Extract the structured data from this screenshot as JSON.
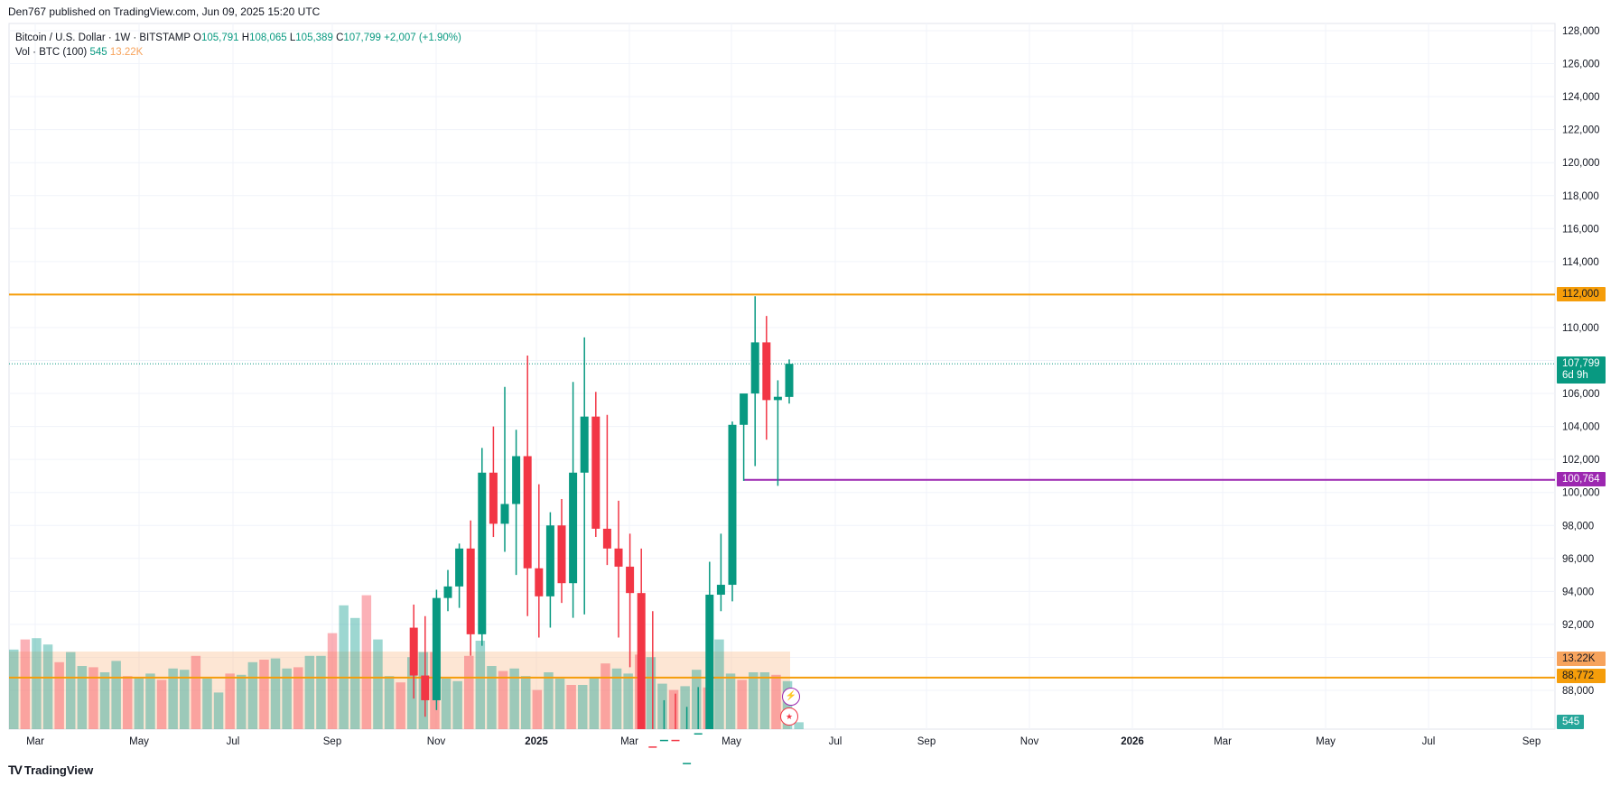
{
  "header": {
    "published_by": "Den767 published on TradingView.com, Jun 09, 2025 15:20 UTC"
  },
  "legend": {
    "symbol": "Bitcoin / U.S. Dollar · 1W · BITSTAMP",
    "open_label": "O",
    "open": "105,791",
    "high_label": "H",
    "high": "108,065",
    "low_label": "L",
    "low": "105,389",
    "close_label": "C",
    "close": "107,799",
    "change": "+2,007 (+1.90%)",
    "vol_label": "Vol · BTC (100)",
    "vol_value": "545",
    "vol_ma": "13.22K"
  },
  "price_labels": {
    "current_price": "107,799",
    "countdown": "6d 9h",
    "resistance": "112,000",
    "support": "100,764",
    "vol_ma": "13.22K",
    "orange_lower": "88,772",
    "vol": "545"
  },
  "brand": {
    "name": "TradingView",
    "logo": "TV"
  },
  "colors": {
    "up": "#089981",
    "down": "#f23645",
    "resistance": "#f59d0a",
    "support": "#9c27b0",
    "vol_ma": "#fac7a0"
  },
  "icons": [
    "lightning-event-icon",
    "us-flag-event-icon"
  ],
  "chart_data": {
    "type": "candlestick",
    "title": "Bitcoin / U.S. Dollar · 1W · BITSTAMP",
    "y_axis_ticks": [
      "128,000",
      "126,000",
      "124,000",
      "122,000",
      "120,000",
      "118,000",
      "116,000",
      "114,000",
      "112,000",
      "110,000",
      "108,000",
      "106,000",
      "104,000",
      "102,000",
      "100,000",
      "98,000",
      "96,000",
      "94,000",
      "92,000",
      "90,000",
      "88,000"
    ],
    "x_axis_ticks": [
      "Mar",
      "May",
      "Jul",
      "Sep",
      "Nov",
      "2025",
      "Mar",
      "May",
      "Jul",
      "Sep",
      "Nov",
      "2026",
      "Mar",
      "May",
      "Jul",
      "Sep"
    ],
    "ylim": [
      86600,
      128300
    ],
    "horizontal_lines": [
      {
        "label": "112,000",
        "value": 112000,
        "color": "#f59d0a"
      },
      {
        "label": "100,764",
        "value": 100764,
        "color": "#9c27b0"
      },
      {
        "label": "88,772",
        "value": 88772,
        "color": "#f59d0a"
      }
    ],
    "candles": [
      {
        "o": 91800,
        "h": 93200,
        "l": 87500,
        "c": 88900
      },
      {
        "o": 88900,
        "h": 92500,
        "l": 86400,
        "c": 87400
      },
      {
        "o": 87400,
        "h": 94100,
        "l": 86800,
        "c": 93600
      },
      {
        "o": 93600,
        "h": 95300,
        "l": 92800,
        "c": 94300
      },
      {
        "o": 94300,
        "h": 96900,
        "l": 93000,
        "c": 96600
      },
      {
        "o": 96600,
        "h": 98300,
        "l": 90100,
        "c": 91400
      },
      {
        "o": 91400,
        "h": 102700,
        "l": 90700,
        "c": 101200
      },
      {
        "o": 101200,
        "h": 104000,
        "l": 97300,
        "c": 98100
      },
      {
        "o": 98100,
        "h": 106400,
        "l": 96400,
        "c": 99300
      },
      {
        "o": 99300,
        "h": 103800,
        "l": 95000,
        "c": 102200
      },
      {
        "o": 102200,
        "h": 108300,
        "l": 92500,
        "c": 95400
      },
      {
        "o": 95400,
        "h": 100500,
        "l": 91200,
        "c": 93700
      },
      {
        "o": 93700,
        "h": 98800,
        "l": 91800,
        "c": 98000
      },
      {
        "o": 98000,
        "h": 99600,
        "l": 93300,
        "c": 94500
      },
      {
        "o": 94500,
        "h": 106700,
        "l": 92400,
        "c": 101200
      },
      {
        "o": 101200,
        "h": 109400,
        "l": 92600,
        "c": 104600
      },
      {
        "o": 104600,
        "h": 106100,
        "l": 97300,
        "c": 97800
      },
      {
        "o": 97800,
        "h": 104700,
        "l": 95600,
        "c": 96600
      },
      {
        "o": 96600,
        "h": 99500,
        "l": 91200,
        "c": 95500
      },
      {
        "o": 95500,
        "h": 97500,
        "l": 89400,
        "c": 93900
      },
      {
        "o": 93900,
        "h": 96600,
        "l": 78500,
        "c": 84600
      },
      {
        "o": 84600,
        "h": 92800,
        "l": 76600,
        "c": 80300
      },
      {
        "o": 80300,
        "h": 87400,
        "l": 78300,
        "c": 85000
      },
      {
        "o": 85000,
        "h": 87800,
        "l": 81000,
        "c": 82700
      },
      {
        "o": 82700,
        "h": 87000,
        "l": 74500,
        "c": 83600
      },
      {
        "o": 83600,
        "h": 88200,
        "l": 76300,
        "c": 85400
      },
      {
        "o": 85400,
        "h": 95800,
        "l": 83000,
        "c": 93800
      },
      {
        "o": 93800,
        "h": 97500,
        "l": 92800,
        "c": 94400
      },
      {
        "o": 94400,
        "h": 104300,
        "l": 93400,
        "c": 104100
      },
      {
        "o": 104100,
        "h": 105800,
        "l": 100700,
        "c": 106000
      },
      {
        "o": 106000,
        "h": 111900,
        "l": 101600,
        "c": 109100
      },
      {
        "o": 109100,
        "h": 110700,
        "l": 103200,
        "c": 105600
      },
      {
        "o": 105600,
        "h": 106800,
        "l": 100400,
        "c": 105800
      },
      {
        "o": 105791,
        "h": 108065,
        "l": 105389,
        "c": 107799
      }
    ],
    "volume": [
      6300,
      7100,
      7200,
      6700,
      5300,
      6100,
      5000,
      4900,
      4500,
      5400,
      4200,
      4100,
      4400,
      3900,
      4800,
      4700,
      5800,
      4000,
      2900,
      4400,
      4300,
      5300,
      5500,
      5600,
      4800,
      4900,
      5800,
      5800,
      7600,
      9800,
      8800,
      10600,
      7100,
      4200,
      3700,
      5700,
      6100,
      6100,
      4000,
      3800,
      5800,
      7000,
      5000,
      4600,
      4800,
      4200,
      3100,
      4500,
      4000,
      3500,
      3500,
      4100,
      5200,
      4800,
      4400,
      5900,
      5700,
      3600,
      3100,
      3400,
      4700,
      3300,
      7100,
      4400,
      3900,
      4500,
      4500,
      4300,
      3800,
      545
    ],
    "volume_ma": 13220
  }
}
